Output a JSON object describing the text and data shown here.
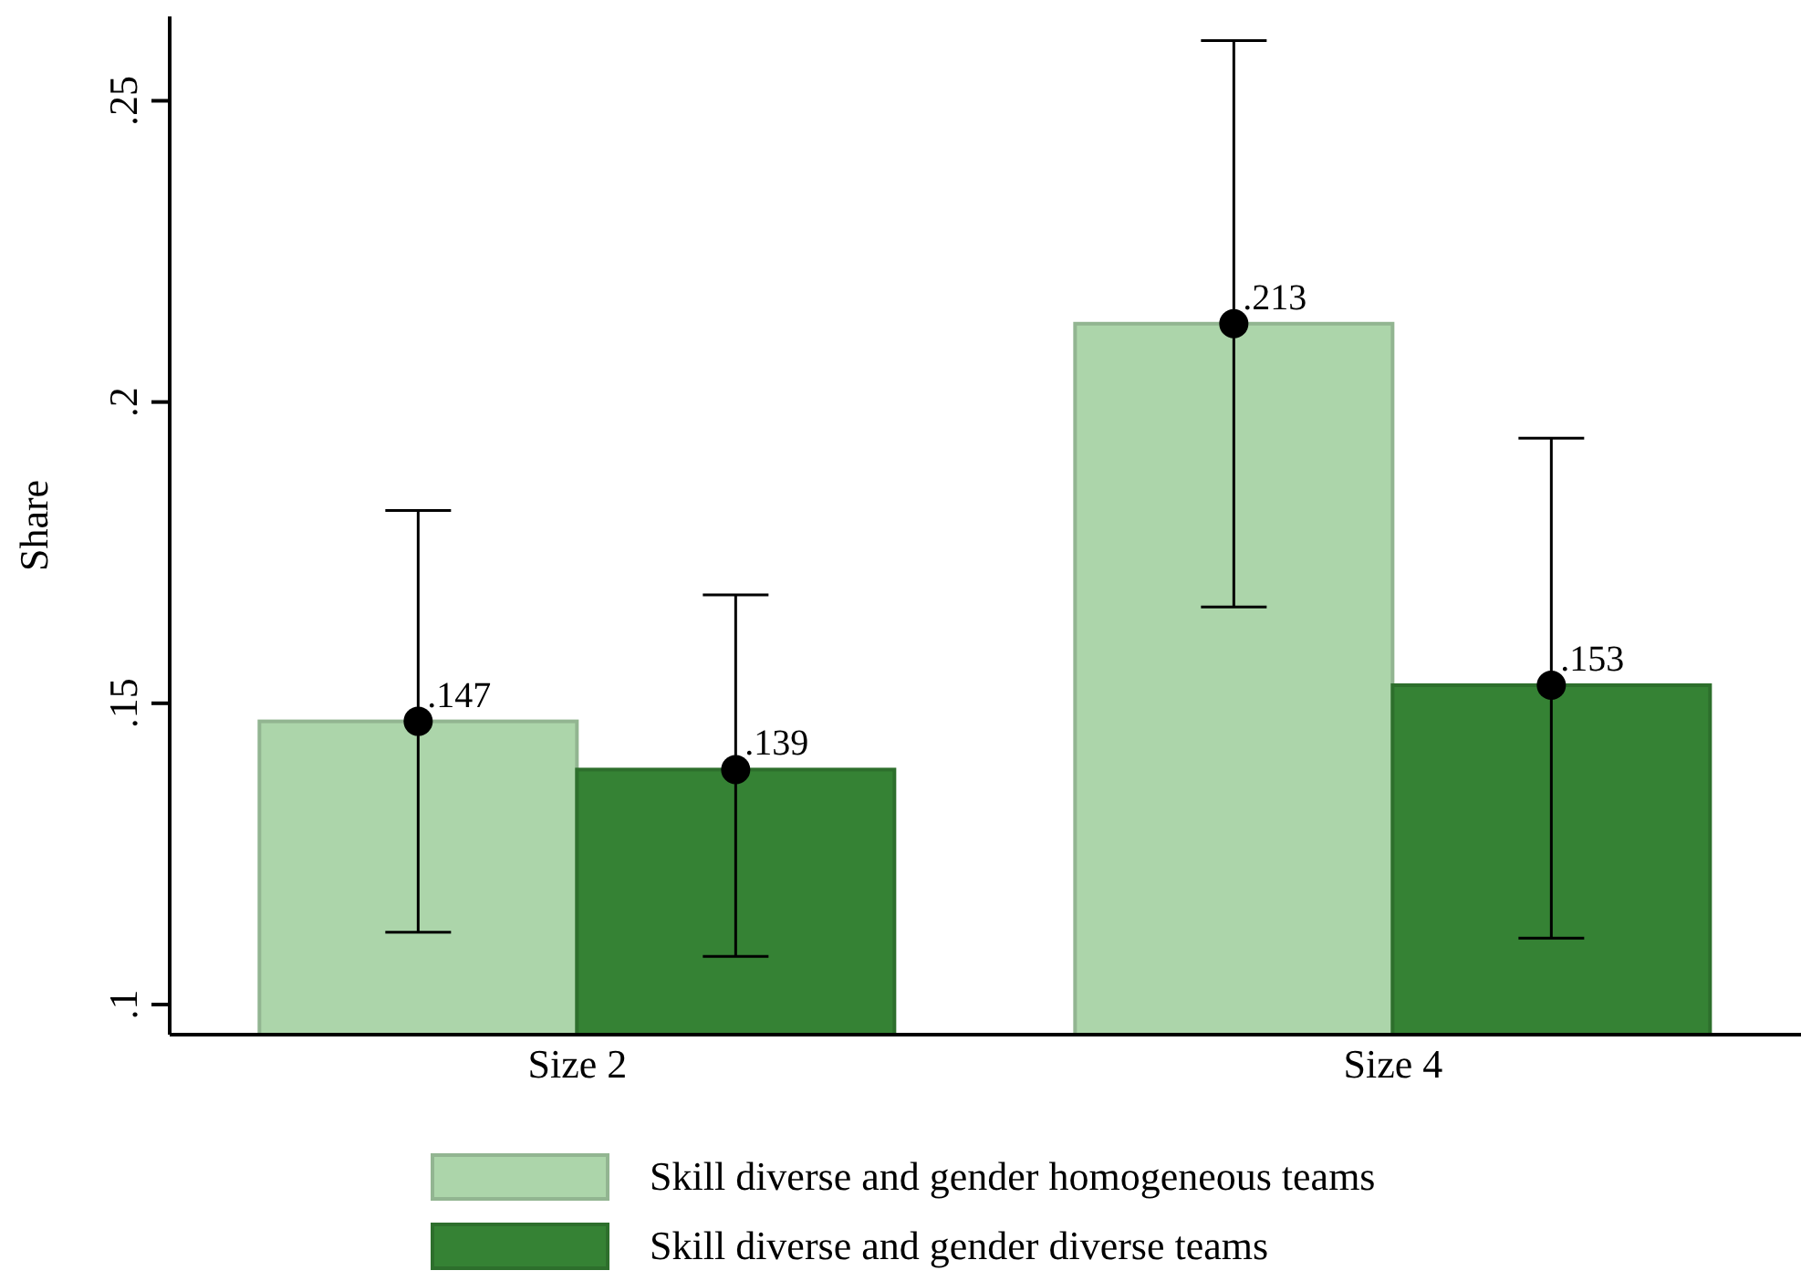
{
  "chart_data": {
    "type": "bar",
    "ylabel": "Share",
    "categories": [
      "Size 2",
      "Size 4"
    ],
    "series": [
      {
        "name": "Skill diverse and gender homogeneous teams",
        "color": "#acd5aa",
        "values": [
          0.147,
          0.213
        ],
        "errors": [
          [
            0.112,
            0.182
          ],
          [
            0.166,
            0.26
          ]
        ],
        "value_labels": [
          ".147",
          ".213"
        ]
      },
      {
        "name": "Skill diverse and gender diverse teams",
        "color": "#358234",
        "values": [
          0.139,
          0.153
        ],
        "errors": [
          [
            0.108,
            0.168
          ],
          [
            0.111,
            0.194
          ]
        ],
        "value_labels": [
          ".139",
          ".153"
        ]
      },
      {
        "type": "scatter",
        "color": "#000000",
        "x": [
          "Size 2",
          "Size 4"
        ],
        "values": [
          0.147,
          0.213
        ],
        "marker": "circle"
      },
      {
        "type": "scatter",
        "color": "#000000",
        "x": [
          "Size 2",
          "Size 4"
        ],
        "values": [
          0.139,
          0.153
        ],
        "marker": "circle"
      }
    ],
    "ylim": [
      0.095,
      0.264
    ],
    "yticks": [
      {
        "value": 0.1,
        "label": ".1"
      },
      {
        "value": 0.15,
        "label": ".15"
      },
      {
        "value": 0.2,
        "label": ".2"
      },
      {
        "value": 0.25,
        "label": ".25"
      }
    ],
    "grid": false,
    "legend": "bottom"
  }
}
